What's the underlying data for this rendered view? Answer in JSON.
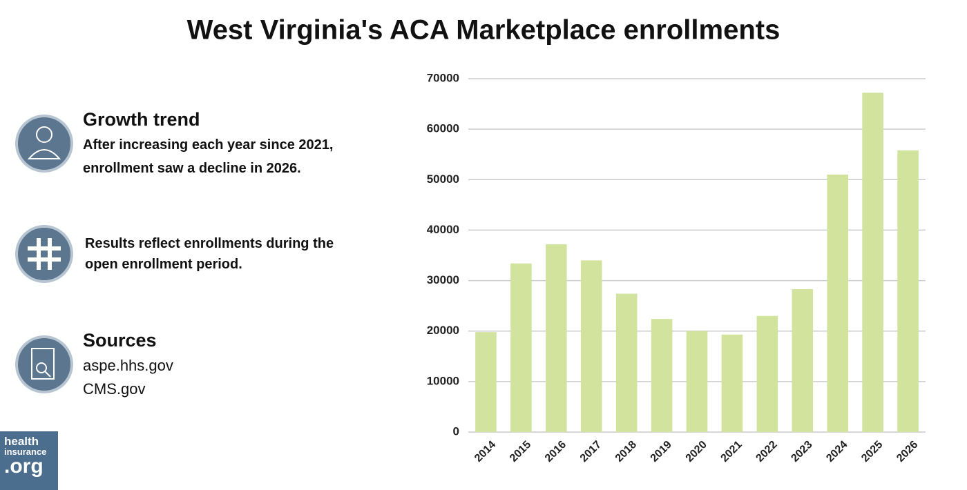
{
  "chart_data": {
    "type": "bar",
    "title": "West Virginia's ACA Marketplace enrollments",
    "categories": [
      "2014",
      "2015",
      "2016",
      "2017",
      "2018",
      "2019",
      "2020",
      "2021",
      "2022",
      "2023",
      "2024",
      "2025",
      "2026"
    ],
    "values": [
      19800,
      33400,
      37200,
      34000,
      27400,
      22400,
      20000,
      19300,
      23000,
      28300,
      51000,
      67200,
      55800
    ],
    "color": "#d1e39d",
    "ylim": [
      0,
      70000
    ],
    "yticks": [
      0,
      10000,
      20000,
      30000,
      40000,
      50000,
      60000,
      70000
    ],
    "grid": true
  },
  "panel": [
    {
      "heading": "Growth trend",
      "lines": [
        "After increasing each year since 2021,",
        "enrollment saw a decline in 2026."
      ]
    },
    {
      "lines": [
        "Results reflect enrollments during the",
        "open enrollment period."
      ]
    },
    {
      "heading": "Sources",
      "lines": [
        "aspe.hhs.gov",
        "CMS.gov"
      ]
    }
  ],
  "logo": [
    "health",
    "insurance",
    ".org"
  ]
}
